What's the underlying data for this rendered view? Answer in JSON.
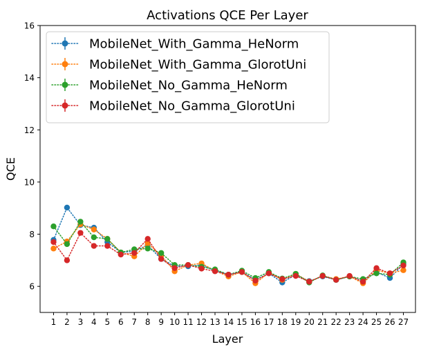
{
  "chart_data": {
    "type": "line",
    "title": "Activations QCE Per Layer",
    "xlabel": "Layer",
    "ylabel": "QCE",
    "xlim": [
      0.0,
      27.9
    ],
    "ylim": [
      5,
      16
    ],
    "grid": false,
    "legend_position": "top-left",
    "x": [
      1,
      2,
      3,
      4,
      5,
      6,
      7,
      8,
      9,
      10,
      11,
      12,
      13,
      14,
      15,
      16,
      17,
      18,
      19,
      20,
      21,
      22,
      23,
      24,
      25,
      26,
      27
    ],
    "x_tick_labels": [
      "1",
      "2",
      "3",
      "4",
      "5",
      "6",
      "7",
      "8",
      "9",
      "10",
      "11",
      "12",
      "13",
      "14",
      "15",
      "16",
      "17",
      "18",
      "19",
      "20",
      "21",
      "22",
      "23",
      "24",
      "25",
      "26",
      "27"
    ],
    "y_ticks": [
      6,
      8,
      10,
      12,
      14,
      16
    ],
    "y_tick_labels": [
      "6",
      "8",
      "10",
      "12",
      "14",
      "16"
    ],
    "series": [
      {
        "name": "MobileNet_With_Gamma_HeNorm",
        "color": "#1f77b4",
        "values": [
          7.78,
          9.02,
          8.35,
          8.25,
          7.7,
          7.3,
          7.35,
          7.58,
          7.05,
          6.78,
          6.77,
          6.82,
          6.6,
          6.45,
          6.55,
          6.25,
          6.5,
          6.15,
          6.45,
          6.2,
          6.38,
          6.25,
          6.38,
          6.2,
          6.55,
          6.32,
          6.85
        ]
      },
      {
        "name": "MobileNet_With_Gamma_GlorotUni",
        "color": "#ff7f0e",
        "values": [
          7.45,
          7.72,
          8.38,
          8.18,
          7.82,
          7.3,
          7.15,
          7.65,
          7.18,
          6.58,
          6.82,
          6.88,
          6.6,
          6.38,
          6.55,
          6.12,
          6.52,
          6.25,
          6.48,
          6.18,
          6.4,
          6.28,
          6.38,
          6.12,
          6.62,
          6.5,
          6.62
        ]
      },
      {
        "name": "MobileNet_No_Gamma_HeNorm",
        "color": "#2ca02c",
        "values": [
          8.3,
          7.62,
          8.48,
          7.88,
          7.82,
          7.3,
          7.42,
          7.45,
          7.28,
          6.82,
          6.82,
          6.75,
          6.65,
          6.45,
          6.6,
          6.32,
          6.55,
          6.3,
          6.48,
          6.15,
          6.42,
          6.25,
          6.38,
          6.28,
          6.5,
          6.45,
          6.92
        ]
      },
      {
        "name": "MobileNet_No_Gamma_GlorotUni",
        "color": "#d62728",
        "values": [
          7.7,
          7.0,
          8.05,
          7.55,
          7.55,
          7.22,
          7.28,
          7.82,
          7.05,
          6.7,
          6.82,
          6.68,
          6.58,
          6.45,
          6.55,
          6.22,
          6.5,
          6.28,
          6.4,
          6.18,
          6.4,
          6.25,
          6.4,
          6.18,
          6.7,
          6.5,
          6.8
        ]
      }
    ]
  }
}
